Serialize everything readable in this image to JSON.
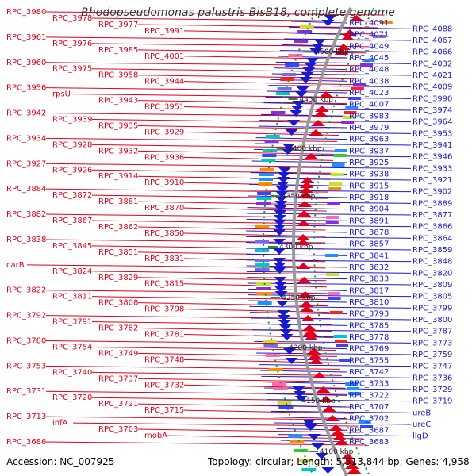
{
  "title": "Rhodopseudomonas palustris BisB18, complete genome",
  "footer": {
    "accession": "Accession: NC_007925",
    "summary": "Topology: circular; Length: 5,513,844 bp; Genes: 4,958"
  },
  "colors": {
    "left": "#e0001a",
    "right": "#1a1acc",
    "backbone": "#999999",
    "tickDots": "#2e8b2e"
  },
  "ticks": [
    "4500 kbp",
    "4450 kbp",
    "4400 kbp",
    "4350 kbp",
    "4300 kbp",
    "4250 kbp",
    "4200 kbp",
    "4150 kbp",
    "4100 kbp"
  ],
  "left_labels": [
    "RPC_3980",
    "RPC_3978",
    "RPC_3977",
    "RPC_3991",
    "RPC_3961",
    "RPC_3976",
    "RPC_3985",
    "RPC_4001",
    "RPC_3960",
    "RPC_3975",
    "RPC_3958",
    "RPC_3944",
    "RPC_3956",
    "rpsU",
    "RPC_3943",
    "RPC_3951",
    "RPC_3942",
    "RPC_3939",
    "RPC_3935",
    "RPC_3929",
    "RPC_3934",
    "RPC_3928",
    "RPC_3932",
    "RPC_3936",
    "RPC_3927",
    "RPC_3926",
    "RPC_3914",
    "RPC_3910",
    "RPC_3884",
    "RPC_3872",
    "RPC_3881",
    "RPC_3870",
    "RPC_3882",
    "RPC_3867",
    "RPC_3862",
    "RPC_3850",
    "RPC_3838",
    "RPC_3845",
    "RPC_3851",
    "RPC_3831",
    "carB",
    "RPC_3824",
    "RPC_3829",
    "RPC_3815",
    "RPC_3822",
    "RPC_3811",
    "RPC_3808",
    "RPC_3798",
    "RPC_3792",
    "RPC_3791",
    "RPC_3782",
    "RPC_3781",
    "RPC_3780",
    "RPC_3754",
    "RPC_3749",
    "RPC_3748",
    "RPC_3753",
    "RPC_3740",
    "RPC_3737",
    "RPC_3732",
    "RPC_3731",
    "RPC_3720",
    "RPC_3721",
    "RPC_3715",
    "RPC_3713",
    "infA",
    "RPC_3703",
    "mobA",
    "RPC_3686"
  ],
  "right_labels": [
    "RPC_4091",
    "RPC_4088",
    "RPC_4071",
    "RPC_4067",
    "RPC_4049",
    "RPC_4066",
    "RPC_4045",
    "RPC_4032",
    "RPC_4048",
    "RPC_4021",
    "RPC_4038",
    "RPC_4009",
    "RPC_4023",
    "RPC_3990",
    "RPC_4007",
    "RPC_3974",
    "RPC_3983",
    "RPC_3964",
    "RPC_3979",
    "RPC_3953",
    "RPC_3963",
    "RPC_3941",
    "RPC_3937",
    "RPC_3946",
    "RPC_3925",
    "RPC_3933",
    "RPC_3938",
    "RPC_3921",
    "RPC_3915",
    "RPC_3902",
    "RPC_3918",
    "RPC_3889",
    "RPC_3904",
    "RPC_3877",
    "RPC_3891",
    "RPC_3866",
    "RPC_3878",
    "RPC_3864",
    "RPC_3857",
    "RPC_3859",
    "RPC_3841",
    "RPC_3848",
    "RPC_3832",
    "RPC_3820",
    "RPC_3833",
    "RPC_3809",
    "RPC_3817",
    "RPC_3805",
    "RPC_3810",
    "RPC_3799",
    "RPC_3793",
    "RPC_3800",
    "RPC_3785",
    "RPC_3787",
    "RPC_3778",
    "RPC_3773",
    "RPC_3769",
    "RPC_3759",
    "RPC_3755",
    "RPC_3747",
    "RPC_3742",
    "RPC_3736",
    "RPC_3733",
    "RPC_3729",
    "RPC_3722",
    "RPC_3719",
    "RPC_3707",
    "ureB",
    "RPC_3702",
    "ureC",
    "RPC_3687",
    "ligD",
    "RPC_3683"
  ]
}
